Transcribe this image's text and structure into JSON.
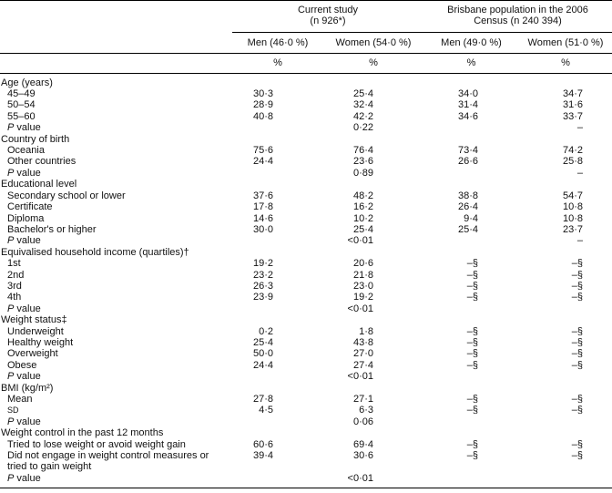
{
  "header": {
    "groups": [
      {
        "title_lines": [
          "Current study",
          "(n 926*)"
        ]
      },
      {
        "title_lines": [
          "Brisbane population in the 2006",
          "Census (n 240 394)"
        ]
      }
    ],
    "columns": [
      "Men (46·0 %)",
      "Women (54·0 %)",
      "Men (49·0 %)",
      "Women (51·0 %)"
    ],
    "units": [
      "%",
      "%",
      "%",
      "%"
    ]
  },
  "sections": [
    {
      "title": "Age (years)",
      "rows": [
        {
          "label": "45–49",
          "values": [
            "30·3",
            "25·4",
            "34·0",
            "34·7"
          ]
        },
        {
          "label": "50–54",
          "values": [
            "28·9",
            "32·4",
            "31·4",
            "31·6"
          ]
        },
        {
          "label": "55–60",
          "values": [
            "40·8",
            "42·2",
            "34·6",
            "33·7"
          ]
        }
      ],
      "p": {
        "label": "P value",
        "current": "0·22",
        "census": "–"
      }
    },
    {
      "title": "Country of birth",
      "rows": [
        {
          "label": "Oceania",
          "values": [
            "75·6",
            "76·4",
            "73·4",
            "74·2"
          ]
        },
        {
          "label": "Other countries",
          "values": [
            "24·4",
            "23·6",
            "26·6",
            "25·8"
          ]
        }
      ],
      "p": {
        "label": "P value",
        "current": "0·89",
        "census": "–"
      }
    },
    {
      "title": "Educational level",
      "rows": [
        {
          "label": "Secondary school or lower",
          "values": [
            "37·6",
            "48·2",
            "38·8",
            "54·7"
          ]
        },
        {
          "label": "Certificate",
          "values": [
            "17·8",
            "16·2",
            "26·4",
            "10·8"
          ]
        },
        {
          "label": "Diploma",
          "values": [
            "14·6",
            "10·2",
            "9·4",
            "10·8"
          ]
        },
        {
          "label": "Bachelor's or higher",
          "values": [
            "30·0",
            "25·4",
            "25·4",
            "23·7"
          ]
        }
      ],
      "p": {
        "label": "P value",
        "current": "<0·01",
        "census": "–"
      }
    },
    {
      "title": "Equivalised household income (quartiles)†",
      "rows": [
        {
          "label": "1st",
          "values": [
            "19·2",
            "20·6",
            "–§",
            "–§"
          ]
        },
        {
          "label": "2nd",
          "values": [
            "23·2",
            "21·8",
            "–§",
            "–§"
          ]
        },
        {
          "label": "3rd",
          "values": [
            "26·3",
            "23·0",
            "–§",
            "–§"
          ]
        },
        {
          "label": "4th",
          "values": [
            "23·9",
            "19·2",
            "–§",
            "–§"
          ]
        }
      ],
      "p": {
        "label": "P value",
        "current": "<0·01"
      }
    },
    {
      "title": "Weight status‡",
      "rows": [
        {
          "label": "Underweight",
          "values": [
            "0·2",
            "1·8",
            "–§",
            "–§"
          ]
        },
        {
          "label": "Healthy weight",
          "values": [
            "25·4",
            "43·8",
            "–§",
            "–§"
          ]
        },
        {
          "label": "Overweight",
          "values": [
            "50·0",
            "27·0",
            "–§",
            "–§"
          ]
        },
        {
          "label": "Obese",
          "values": [
            "24·4",
            "27·4",
            "–§",
            "–§"
          ]
        }
      ],
      "p": {
        "label": "P value",
        "current": "<0·01"
      }
    },
    {
      "title": "BMI (kg/m²)",
      "rows": [
        {
          "label": "Mean",
          "values": [
            "27·8",
            "27·1",
            "–§",
            "–§"
          ]
        },
        {
          "label": "SD",
          "values": [
            "4·5",
            "6·3",
            "–§",
            "–§"
          ]
        }
      ],
      "p": {
        "label": "P value",
        "current": "0·06"
      }
    },
    {
      "title": "Weight control in the past 12 months",
      "rows": [
        {
          "label": "Tried to lose weight or avoid weight gain",
          "values": [
            "60·6",
            "69·4",
            "–§",
            "–§"
          ]
        },
        {
          "label": "Did not engage in weight control measures or tried to gain weight",
          "values": [
            "39·4",
            "30·6",
            "–§",
            "–§"
          ]
        }
      ],
      "p": {
        "label": "P value",
        "current": "<0·01"
      }
    }
  ]
}
